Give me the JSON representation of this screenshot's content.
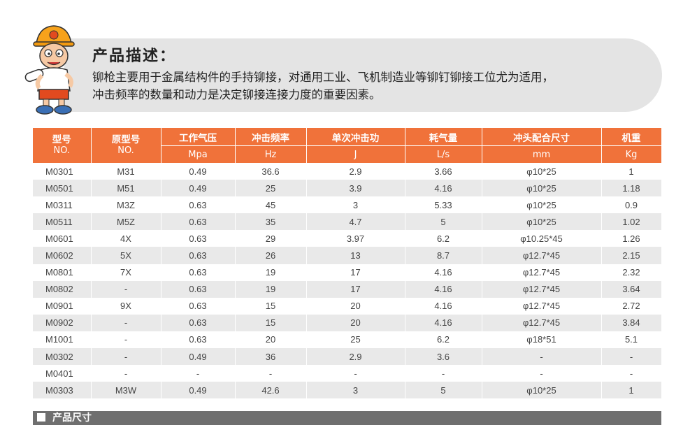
{
  "description": {
    "title": "产品描述：",
    "line1": "铆枪主要用于金属结构件的手持铆接，对通用工业、飞机制造业等铆钉铆接工位尤为适用，",
    "line2": "冲击频率的数量和动力是决定铆接连接力度的重要因素。"
  },
  "table": {
    "headers": [
      {
        "cn": "型号",
        "unit": "NO."
      },
      {
        "cn": "原型号",
        "unit": "NO."
      },
      {
        "cn": "工作气压",
        "unit": "Mpa"
      },
      {
        "cn": "冲击频率",
        "unit": "Hz"
      },
      {
        "cn": "单次冲击功",
        "unit": "J"
      },
      {
        "cn": "耗气量",
        "unit": "L/s"
      },
      {
        "cn": "冲头配合尺寸",
        "unit": "mm"
      },
      {
        "cn": "机重",
        "unit": "Kg"
      }
    ],
    "rows": [
      [
        "M0301",
        "M31",
        "0.49",
        "36.6",
        "2.9",
        "3.66",
        "φ10*25",
        "1"
      ],
      [
        "M0501",
        "M51",
        "0.49",
        "25",
        "3.9",
        "4.16",
        "φ10*25",
        "1.18"
      ],
      [
        "M0311",
        "M3Z",
        "0.63",
        "45",
        "3",
        "5.33",
        "φ10*25",
        "0.9"
      ],
      [
        "M0511",
        "M5Z",
        "0.63",
        "35",
        "4.7",
        "5",
        "φ10*25",
        "1.02"
      ],
      [
        "M0601",
        "4X",
        "0.63",
        "29",
        "3.97",
        "6.2",
        "φ10.25*45",
        "1.26"
      ],
      [
        "M0602",
        "5X",
        "0.63",
        "26",
        "13",
        "8.7",
        "φ12.7*45",
        "2.15"
      ],
      [
        "M0801",
        "7X",
        "0.63",
        "19",
        "17",
        "4.16",
        "φ12.7*45",
        "2.32"
      ],
      [
        "M0802",
        "-",
        "0.63",
        "19",
        "17",
        "4.16",
        "φ12.7*45",
        "3.64"
      ],
      [
        "M0901",
        "9X",
        "0.63",
        "15",
        "20",
        "4.16",
        "φ12.7*45",
        "2.72"
      ],
      [
        "M0902",
        "-",
        "0.63",
        "15",
        "20",
        "4.16",
        "φ12.7*45",
        "3.84"
      ],
      [
        "M1001",
        "-",
        "0.63",
        "20",
        "25",
        "6.2",
        "φ18*51",
        "5.1"
      ],
      [
        "M0302",
        "-",
        "0.49",
        "36",
        "2.9",
        "3.6",
        "-",
        "-"
      ],
      [
        "M0401",
        "-",
        "-",
        "-",
        "-",
        "-",
        "-",
        "-"
      ],
      [
        "M0303",
        "M3W",
        "0.49",
        "42.6",
        "3",
        "5",
        "φ10*25",
        "1"
      ]
    ]
  },
  "footer": {
    "label": "产品尺寸"
  },
  "colors": {
    "header": "#f0723a",
    "stripe": "#e9e9e9",
    "banner": "#e4e4e4",
    "footer": "#6f6f6f"
  },
  "icons": {
    "mascot": "cartoon-worker-icon",
    "footer": "square-bullet-icon"
  }
}
